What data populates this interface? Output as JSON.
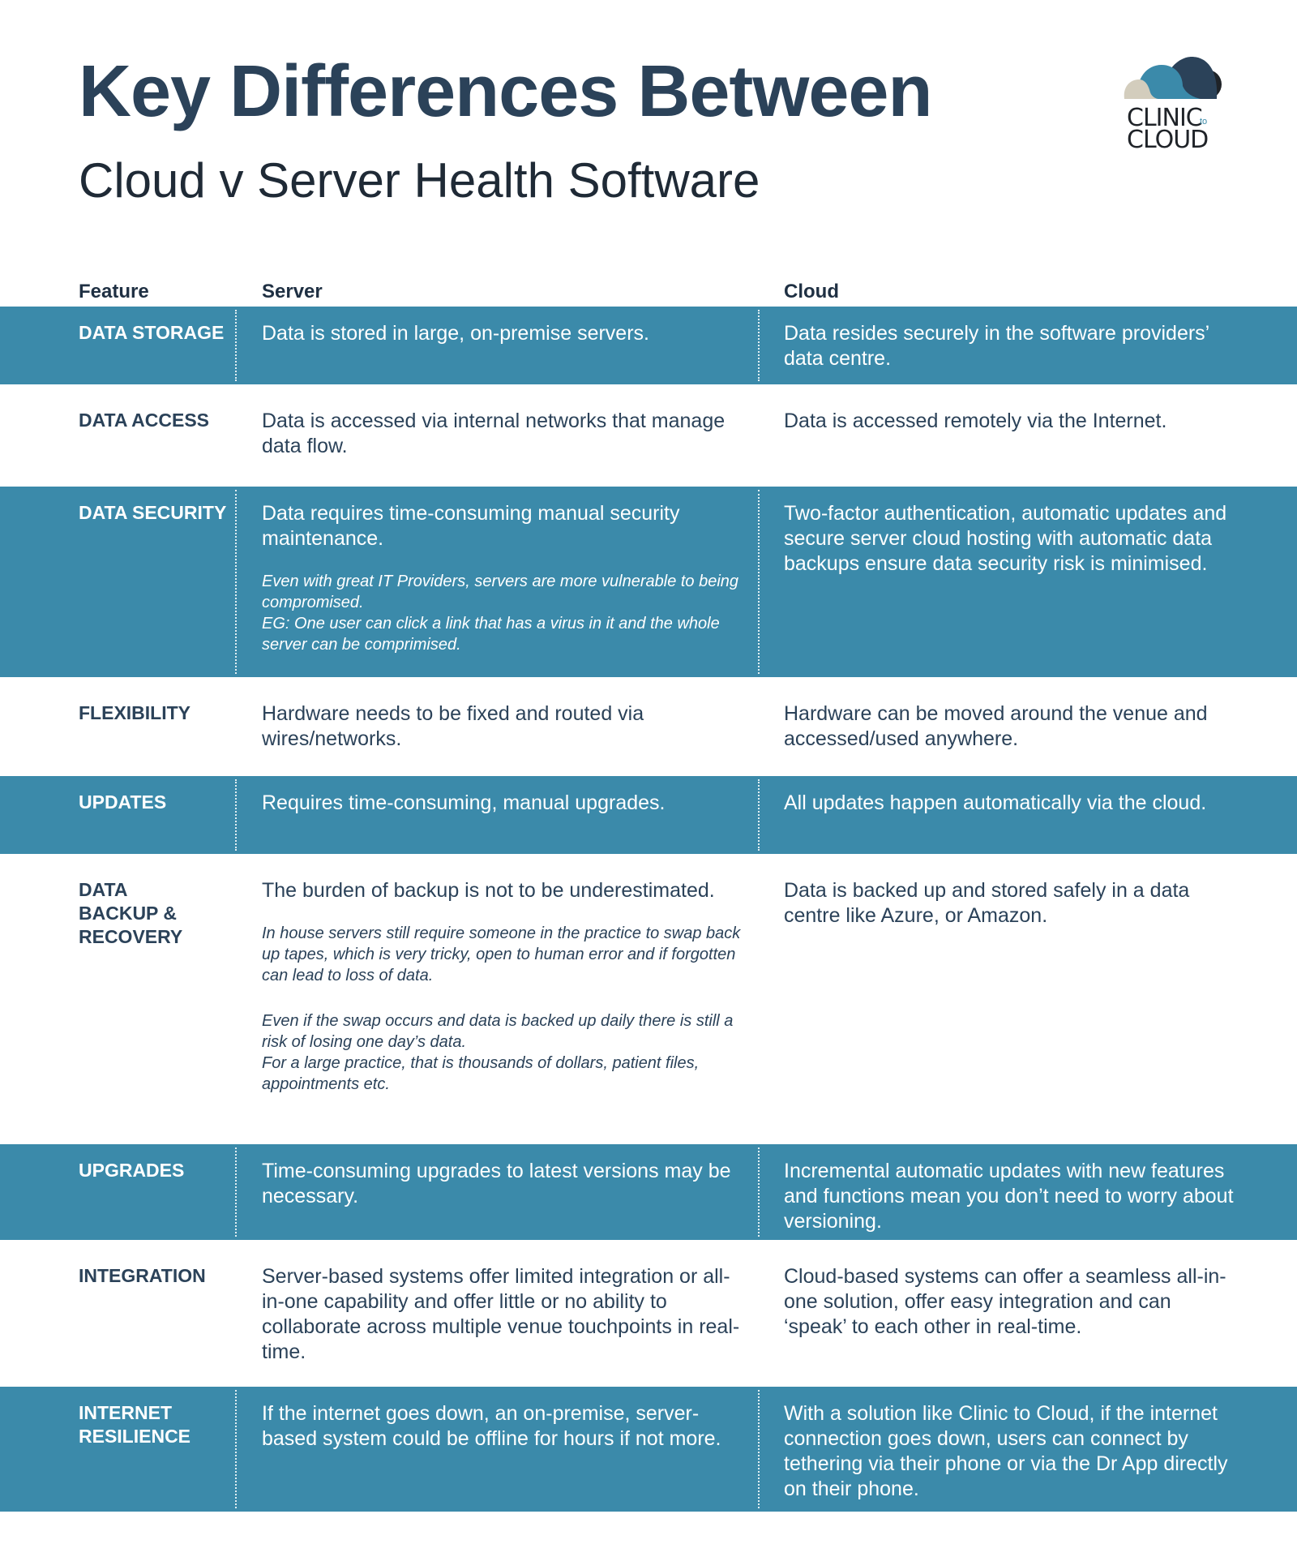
{
  "header": {
    "title": "Key Differences Between",
    "subtitle": "Cloud v Server Health Software",
    "logo": {
      "line1": "CLINIC",
      "to": "to",
      "line2": "CLOUD",
      "icon": "cloud-logo-icon"
    }
  },
  "colors": {
    "teal": "#3b8aaa",
    "navy": "#2b4259",
    "white": "#ffffff"
  },
  "table": {
    "columns": [
      "Feature",
      "Server",
      "Cloud"
    ],
    "rows": [
      {
        "feature": "DATA STORAGE",
        "server": "Data is stored in large, on-premise servers.",
        "server_notes": [],
        "cloud": "Data resides securely in the software providers’ data centre."
      },
      {
        "feature": "DATA ACCESS",
        "server": "Data is accessed via internal networks that manage data flow.",
        "server_notes": [],
        "cloud": "Data is accessed remotely via the Internet."
      },
      {
        "feature": "DATA SECURITY",
        "server": "Data requires time-consuming manual security maintenance.",
        "server_notes": [
          "Even with great IT Providers, servers are more vulnerable to being compromised.",
          "EG: One user can click a link that has a virus in it and the whole server can be comprimised."
        ],
        "cloud": "Two-factor authentication, automatic updates and secure server cloud hosting with automatic data backups ensure data security risk is minimised."
      },
      {
        "feature": "FLEXIBILITY",
        "server": "Hardware needs to be fixed and routed via wires/networks.",
        "server_notes": [],
        "cloud": "Hardware can be moved around the venue and accessed/used anywhere."
      },
      {
        "feature": "UPDATES",
        "server": "Requires time-consuming, manual upgrades.",
        "server_notes": [],
        "cloud": "All updates happen automatically via the cloud."
      },
      {
        "feature": "DATA BACKUP & RECOVERY",
        "server": "The burden of backup is not to be underestimated.",
        "server_notes": [
          "In house servers still require someone in the practice to swap back up tapes, which is very tricky, open to human error and if forgotten can lead to loss of data.",
          "Even if the swap occurs and data is backed up daily there is still a risk of losing one day’s data.",
          "For a large practice, that is thousands of dollars, patient files, appointments etc."
        ],
        "cloud": "Data is backed up and stored safely in a data centre like Azure, or Amazon."
      },
      {
        "feature": "UPGRADES",
        "server": "Time-consuming upgrades to latest versions may be necessary.",
        "server_notes": [],
        "cloud": "Incremental automatic updates with new features and functions mean you don’t need to worry about versioning."
      },
      {
        "feature": "INTEGRATION",
        "server": "Server-based systems offer limited integration or all-in-one capability and offer little or no ability to collaborate across multiple venue touchpoints in real-time.",
        "server_notes": [],
        "cloud": "Cloud-based systems can offer a seamless all-in-one solution, offer easy integration and can ‘speak’ to each other in real-time."
      },
      {
        "feature": "INTERNET RESILIENCE",
        "server": "If the internet goes down, an on-premise, server-based system could be offline for hours if not more.",
        "server_notes": [],
        "cloud": "With a solution like Clinic to Cloud, if the internet connection goes down, users can connect by tethering via their phone or via the Dr App directly on their phone."
      }
    ]
  }
}
